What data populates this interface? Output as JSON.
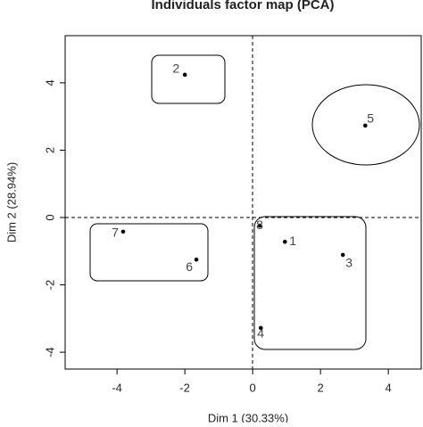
{
  "chart_data": {
    "type": "scatter",
    "title": "Individuals factor map (PCA)",
    "x_label": "Dim 1 (30.33%)",
    "y_label": "Dim 2 (28.94%)",
    "labels": [
      "1",
      "2",
      "3",
      "4",
      "5",
      "6",
      "7",
      "8"
    ],
    "x": [
      0.95,
      -2.0,
      2.66,
      0.24,
      3.32,
      -1.66,
      -3.82,
      0.21
    ],
    "values": [
      -0.72,
      4.24,
      -1.11,
      -3.28,
      2.73,
      -1.25,
      -0.42,
      -0.24
    ],
    "color": "#000000",
    "xlim": [
      -5.53,
      4.97
    ],
    "xticks": [
      -4,
      -2,
      0,
      2,
      4
    ],
    "ylim": [
      -4.5,
      5.4
    ],
    "yticks": [
      -4,
      -2,
      0,
      2,
      4
    ]
  }
}
